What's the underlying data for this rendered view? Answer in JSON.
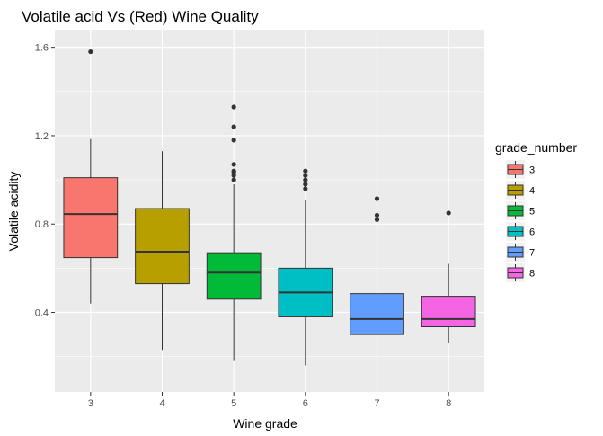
{
  "chart_data": {
    "type": "boxplot",
    "title": "Volatile acid Vs (Red) Wine Quality",
    "xlabel": "Wine grade",
    "ylabel": "Volatile acidity",
    "categories": [
      "3",
      "4",
      "5",
      "6",
      "7",
      "8"
    ],
    "ylim": [
      0.04,
      1.68
    ],
    "yticks": [
      0.4,
      0.8,
      1.2,
      1.6
    ],
    "yticks_minor": [
      0.2,
      0.6,
      1.0,
      1.4
    ],
    "ytick_labels": [
      "0.4",
      "0.8",
      "1.2",
      "1.6"
    ],
    "grid": true,
    "legend": {
      "title": "grade_number",
      "position": "right",
      "labels": [
        "3",
        "4",
        "5",
        "6",
        "7",
        "8"
      ]
    },
    "series": [
      {
        "name": "3",
        "color": "#F8766D",
        "min": 0.44,
        "q1": 0.648,
        "median": 0.845,
        "q3": 1.01,
        "max": 1.185,
        "outliers": [
          1.58
        ]
      },
      {
        "name": "4",
        "color": "#B79F00",
        "min": 0.23,
        "q1": 0.53,
        "median": 0.675,
        "q3": 0.87,
        "max": 1.13,
        "outliers": []
      },
      {
        "name": "5",
        "color": "#00BA38",
        "min": 0.18,
        "q1": 0.46,
        "median": 0.58,
        "q3": 0.67,
        "max": 0.98,
        "outliers": [
          1.0,
          1.02,
          1.035,
          1.04,
          1.07,
          1.18,
          1.24,
          1.33
        ]
      },
      {
        "name": "6",
        "color": "#00BFC4",
        "min": 0.16,
        "q1": 0.38,
        "median": 0.49,
        "q3": 0.6,
        "max": 0.91,
        "outliers": [
          0.96,
          0.98,
          1.0,
          1.02,
          1.04
        ]
      },
      {
        "name": "7",
        "color": "#619CFF",
        "min": 0.12,
        "q1": 0.3,
        "median": 0.37,
        "q3": 0.485,
        "max": 0.74,
        "outliers": [
          0.82,
          0.84,
          0.915
        ]
      },
      {
        "name": "8",
        "color": "#F564E3",
        "min": 0.26,
        "q1": 0.335,
        "median": 0.37,
        "q3": 0.473,
        "max": 0.62,
        "outliers": [
          0.85
        ]
      }
    ]
  }
}
